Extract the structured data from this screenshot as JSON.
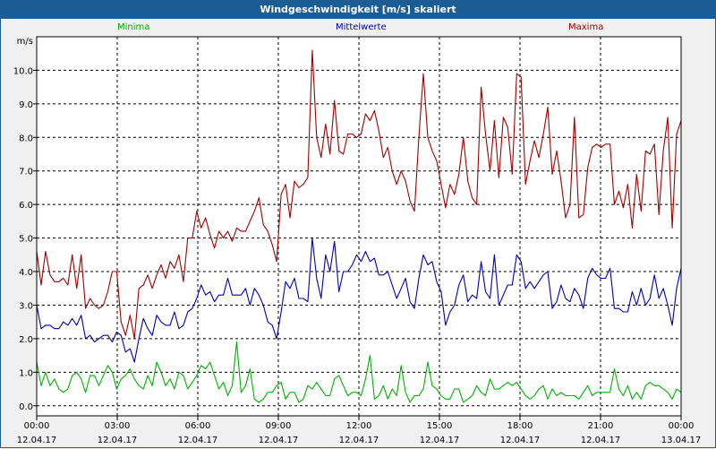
{
  "window": {
    "title": "Windgeschwindigkeit [m/s] skaliert"
  },
  "chart_data": {
    "type": "line",
    "title": "Windgeschwindigkeit [m/s] skaliert",
    "ylabel": "m/s",
    "ylim": [
      -0.3,
      11.0
    ],
    "xlim": [
      0,
      24
    ],
    "grid": true,
    "legend_placement": "top",
    "y_ticks": [
      "0.0",
      "1.0",
      "2.0",
      "3.0",
      "4.0",
      "5.0",
      "6.0",
      "7.0",
      "8.0",
      "9.0",
      "10.0"
    ],
    "x_ticks": [
      {
        "time": "00:00",
        "date": "12.04.17"
      },
      {
        "time": "03:00",
        "date": "12.04.17"
      },
      {
        "time": "06:00",
        "date": "12.04.17"
      },
      {
        "time": "09:00",
        "date": "12.04.17"
      },
      {
        "time": "12:00",
        "date": "12.04.17"
      },
      {
        "time": "15:00",
        "date": "12.04.17"
      },
      {
        "time": "18:00",
        "date": "12.04.17"
      },
      {
        "time": "21:00",
        "date": "12.04.17"
      },
      {
        "time": "00:00",
        "date": "13.04.17"
      }
    ],
    "series": [
      {
        "name": "Maxima",
        "color": "#a00000",
        "values": [
          4.6,
          3.6,
          4.6,
          3.9,
          3.7,
          3.7,
          3.8,
          3.6,
          4.5,
          3.5,
          4.5,
          2.9,
          3.2,
          3.0,
          2.9,
          3.0,
          3.4,
          4.0,
          4.0,
          2.5,
          2.1,
          2.7,
          2.0,
          3.5,
          3.6,
          3.9,
          3.5,
          3.9,
          4.2,
          3.8,
          4.3,
          4.1,
          4.5,
          3.7,
          5.0,
          5.0,
          5.8,
          5.3,
          5.6,
          5.1,
          4.7,
          5.2,
          5.0,
          5.2,
          4.9,
          5.3,
          5.2,
          5.2,
          5.5,
          5.8,
          6.2,
          5.4,
          5.2,
          4.8,
          4.3,
          6.3,
          6.6,
          5.6,
          6.7,
          6.5,
          6.6,
          6.8,
          10.6,
          8.0,
          7.4,
          8.4,
          7.5,
          9.1,
          7.6,
          7.5,
          8.1,
          8.1,
          8.0,
          8.1,
          8.7,
          8.5,
          8.8,
          8.2,
          7.4,
          7.7,
          7.0,
          6.6,
          7.0,
          6.7,
          6.1,
          5.8,
          8.0,
          9.9,
          8.0,
          7.6,
          7.3,
          6.6,
          5.9,
          6.6,
          6.3,
          6.9,
          8.0,
          6.7,
          6.2,
          6.0,
          9.5,
          8.1,
          7.0,
          8.5,
          6.8,
          8.6,
          8.3,
          6.9,
          9.9,
          9.8,
          6.6,
          7.3,
          7.9,
          7.4,
          8.1,
          8.9,
          6.9,
          7.6,
          6.7,
          5.6,
          6.0,
          8.6,
          5.6,
          5.7,
          7.1,
          7.7,
          7.8,
          7.7,
          7.8,
          7.8,
          6.0,
          6.4,
          5.9,
          6.6,
          5.3,
          6.9,
          5.8,
          7.6,
          7.5,
          7.8,
          5.7,
          7.6,
          8.6,
          5.3,
          8.1,
          8.5
        ]
      },
      {
        "name": "Mittelwerte",
        "color": "#0000b0",
        "values": [
          3.0,
          2.3,
          2.4,
          2.4,
          2.3,
          2.3,
          2.5,
          2.4,
          2.6,
          2.4,
          2.7,
          2.0,
          2.1,
          1.9,
          2.0,
          2.1,
          2.1,
          1.9,
          2.2,
          2.1,
          1.6,
          1.7,
          1.3,
          2.0,
          2.6,
          2.3,
          2.1,
          2.7,
          2.5,
          2.4,
          2.4,
          2.8,
          2.3,
          2.4,
          2.8,
          2.9,
          3.2,
          3.6,
          3.3,
          3.4,
          3.1,
          3.3,
          3.3,
          3.8,
          3.3,
          3.3,
          3.3,
          3.5,
          3.0,
          3.5,
          3.3,
          3.0,
          2.5,
          2.4,
          2.0,
          2.8,
          3.7,
          3.5,
          3.8,
          3.2,
          3.2,
          3.1,
          5.0,
          3.8,
          3.2,
          4.5,
          4.0,
          4.9,
          3.4,
          4.0,
          4.0,
          4.2,
          4.5,
          4.3,
          4.6,
          4.3,
          4.4,
          3.9,
          3.9,
          4.0,
          3.6,
          3.2,
          3.5,
          3.8,
          3.1,
          2.9,
          3.8,
          4.5,
          4.2,
          4.3,
          3.7,
          3.4,
          2.4,
          2.8,
          3.0,
          3.6,
          3.9,
          3.1,
          3.3,
          3.2,
          4.3,
          3.4,
          3.2,
          4.5,
          3.0,
          3.3,
          3.6,
          3.6,
          4.5,
          4.3,
          3.5,
          3.7,
          3.5,
          3.7,
          3.9,
          4.0,
          2.9,
          3.1,
          3.6,
          3.2,
          3.1,
          3.5,
          3.3,
          2.9,
          3.8,
          4.1,
          3.9,
          3.8,
          3.8,
          4.1,
          2.9,
          2.9,
          2.8,
          2.8,
          3.4,
          3.0,
          3.5,
          3.0,
          3.2,
          3.9,
          3.2,
          3.5,
          3.0,
          2.4,
          3.5,
          4.1
        ]
      },
      {
        "name": "Minima",
        "color": "#00b000",
        "values": [
          1.3,
          0.6,
          1.0,
          0.6,
          0.8,
          0.5,
          0.4,
          0.5,
          0.9,
          1.0,
          0.8,
          0.4,
          0.9,
          0.9,
          0.6,
          0.9,
          1.2,
          1.0,
          0.5,
          0.8,
          0.9,
          1.1,
          0.8,
          0.6,
          0.5,
          0.9,
          0.6,
          1.3,
          1.0,
          0.6,
          0.8,
          0.5,
          1.0,
          0.9,
          0.5,
          0.7,
          0.9,
          1.2,
          1.1,
          1.3,
          0.9,
          0.5,
          0.7,
          0.3,
          0.6,
          1.9,
          0.4,
          0.6,
          1.1,
          0.2,
          0.1,
          0.2,
          0.4,
          0.4,
          0.6,
          0.7,
          0.2,
          0.4,
          0.4,
          0.1,
          0.2,
          0.6,
          0.5,
          0.7,
          0.5,
          0.3,
          0.3,
          0.8,
          0.9,
          0.6,
          0.3,
          0.4,
          0.4,
          0.3,
          0.8,
          1.5,
          0.2,
          0.3,
          0.6,
          0.2,
          0.5,
          0.3,
          1.2,
          0.4,
          0.1,
          0.3,
          0.3,
          0.5,
          1.3,
          0.6,
          0.5,
          0.3,
          0.2,
          0.2,
          0.5,
          0.5,
          0.1,
          0.2,
          0.3,
          0.6,
          0.4,
          0.3,
          0.8,
          0.5,
          0.5,
          0.6,
          0.7,
          0.6,
          0.7,
          0.5,
          0.3,
          0.2,
          0.3,
          0.5,
          0.6,
          0.2,
          0.5,
          0.3,
          0.4,
          0.3,
          0.3,
          0.3,
          0.2,
          0.4,
          0.6,
          0.3,
          0.4,
          0.4,
          0.4,
          0.4,
          1.1,
          0.5,
          0.3,
          0.6,
          0.2,
          0.4,
          0.2,
          0.6,
          0.7,
          0.6,
          0.6,
          0.5,
          0.4,
          0.2,
          0.5,
          0.4
        ]
      }
    ]
  }
}
